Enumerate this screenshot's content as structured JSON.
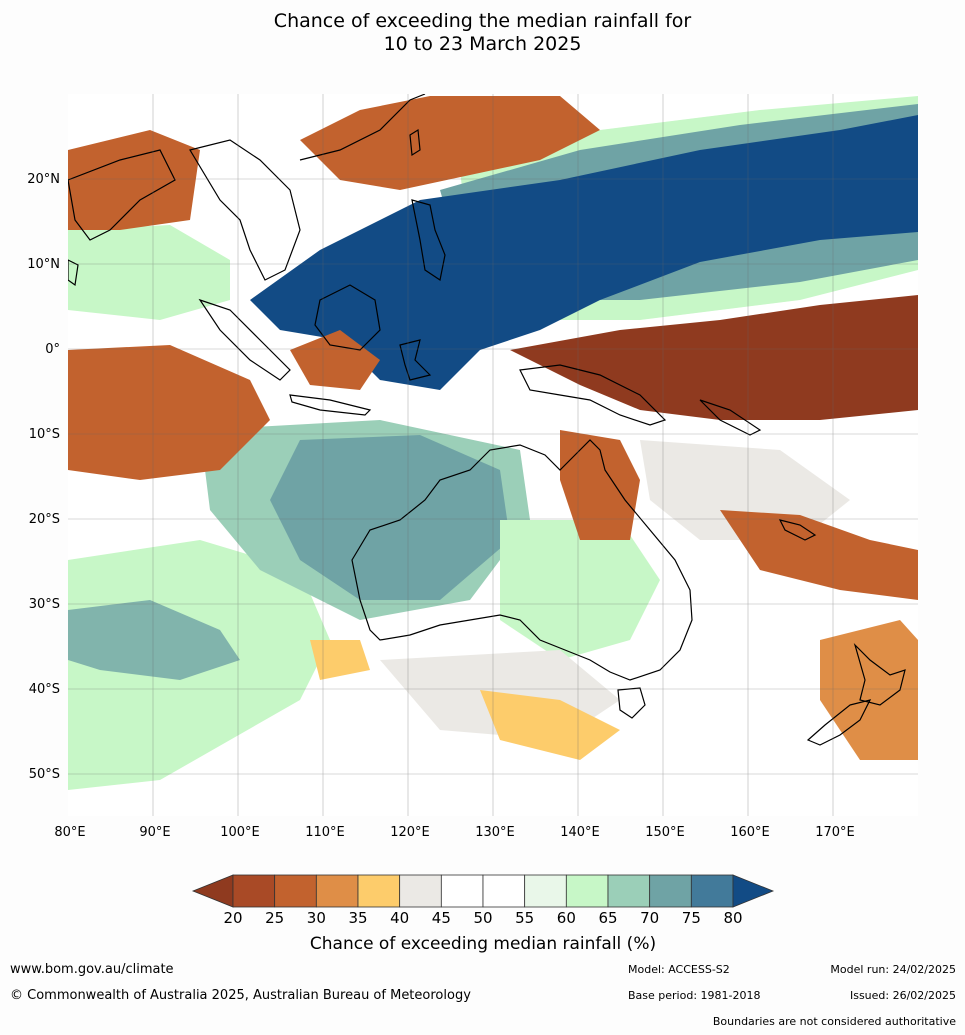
{
  "title": {
    "line1": "Chance of exceeding the median rainfall for",
    "line2": "10 to 23 March 2025"
  },
  "map": {
    "lat_labels": [
      "20°N",
      "10°N",
      "0°",
      "10°S",
      "20°S",
      "30°S",
      "40°S",
      "50°S"
    ],
    "lon_labels": [
      "80°E",
      "90°E",
      "100°E",
      "110°E",
      "120°E",
      "130°E",
      "140°E",
      "150°E",
      "160°E",
      "170°E"
    ],
    "colors": {
      "very_dry": "#8f3a1f",
      "dry": "#c2622e",
      "mild_dry": "#fdcc6b",
      "neutral": "#ffffff",
      "grey": "#ebe9e5",
      "mild_wet": "#c7f7c7",
      "wet": "#6fa3a5",
      "very_wet": "#124b85",
      "land_outline": "#000000"
    }
  },
  "colorbar": {
    "ticks": [
      "20",
      "25",
      "30",
      "35",
      "40",
      "45",
      "50",
      "55",
      "60",
      "65",
      "70",
      "75",
      "80"
    ],
    "colors": [
      "#8f3a1f",
      "#a94a26",
      "#c2622e",
      "#df8e47",
      "#fdcc6b",
      "#ebe9e5",
      "#ffffff",
      "#ffffff",
      "#e9f7e9",
      "#c7f7c7",
      "#9bcfb8",
      "#6fa3a5",
      "#427a9a",
      "#124b85"
    ],
    "label": "Chance of exceeding median rainfall (%)"
  },
  "footer": {
    "website": "www.bom.gov.au/climate",
    "copyright": "© Commonwealth of Australia 2025, Australian Bureau of Meteorology",
    "model": "Model: ACCESS-S2",
    "base_period": "Base period: 1981-2018",
    "model_run": "Model run: 24/02/2025",
    "issued": "Issued: 26/02/2025",
    "disclaimer": "Boundaries are not considered authoritative"
  }
}
